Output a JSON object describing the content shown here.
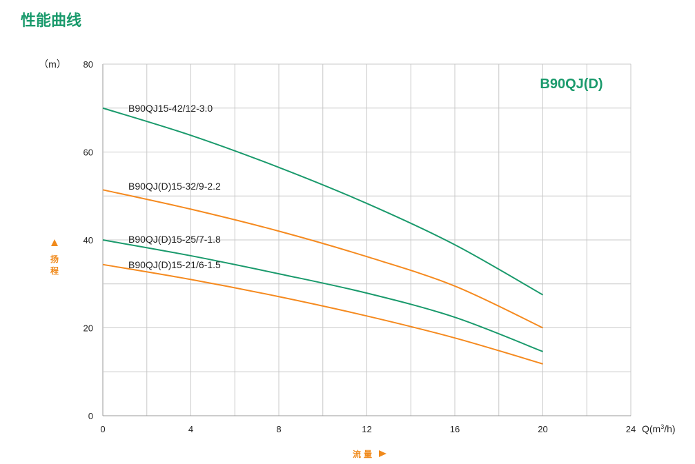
{
  "title": "性能曲线",
  "chart_data": {
    "type": "line",
    "title": "B90QJ(D)",
    "ylabel_unit": "（m）",
    "ylabel": "扬程",
    "xlabel": "流量",
    "xlabel_unit": "Q(m³/h)",
    "xlim": [
      0,
      24
    ],
    "ylim": [
      0,
      80
    ],
    "xticks": [
      0,
      4,
      8,
      12,
      16,
      20,
      24
    ],
    "yticks": [
      0,
      20,
      40,
      60,
      80
    ],
    "grid": true,
    "series": [
      {
        "name": "B90QJ15-42/12-3.0",
        "color": "#1a9a6c",
        "x": [
          0,
          4,
          8,
          12,
          16,
          20
        ],
        "y": [
          70,
          63.8,
          56.5,
          48.3,
          38.9,
          27.5
        ]
      },
      {
        "name": "B90QJ(D)15-32/9-2.2",
        "color": "#f58a1f",
        "x": [
          0,
          4,
          8,
          12,
          16,
          20
        ],
        "y": [
          51.4,
          47,
          42,
          36.2,
          29.5,
          20
        ]
      },
      {
        "name": "B90QJ(D)15-25/7-1.8",
        "color": "#1a9a6c",
        "x": [
          0,
          4,
          8,
          12,
          16,
          20
        ],
        "y": [
          40,
          36.4,
          32.3,
          27.9,
          22.4,
          14.6
        ]
      },
      {
        "name": "B90QJ(D)15-21/6-1.5",
        "color": "#f58a1f",
        "x": [
          0,
          4,
          8,
          12,
          16,
          20
        ],
        "y": [
          34.4,
          31,
          27.1,
          22.7,
          17.7,
          11.8
        ]
      }
    ]
  }
}
